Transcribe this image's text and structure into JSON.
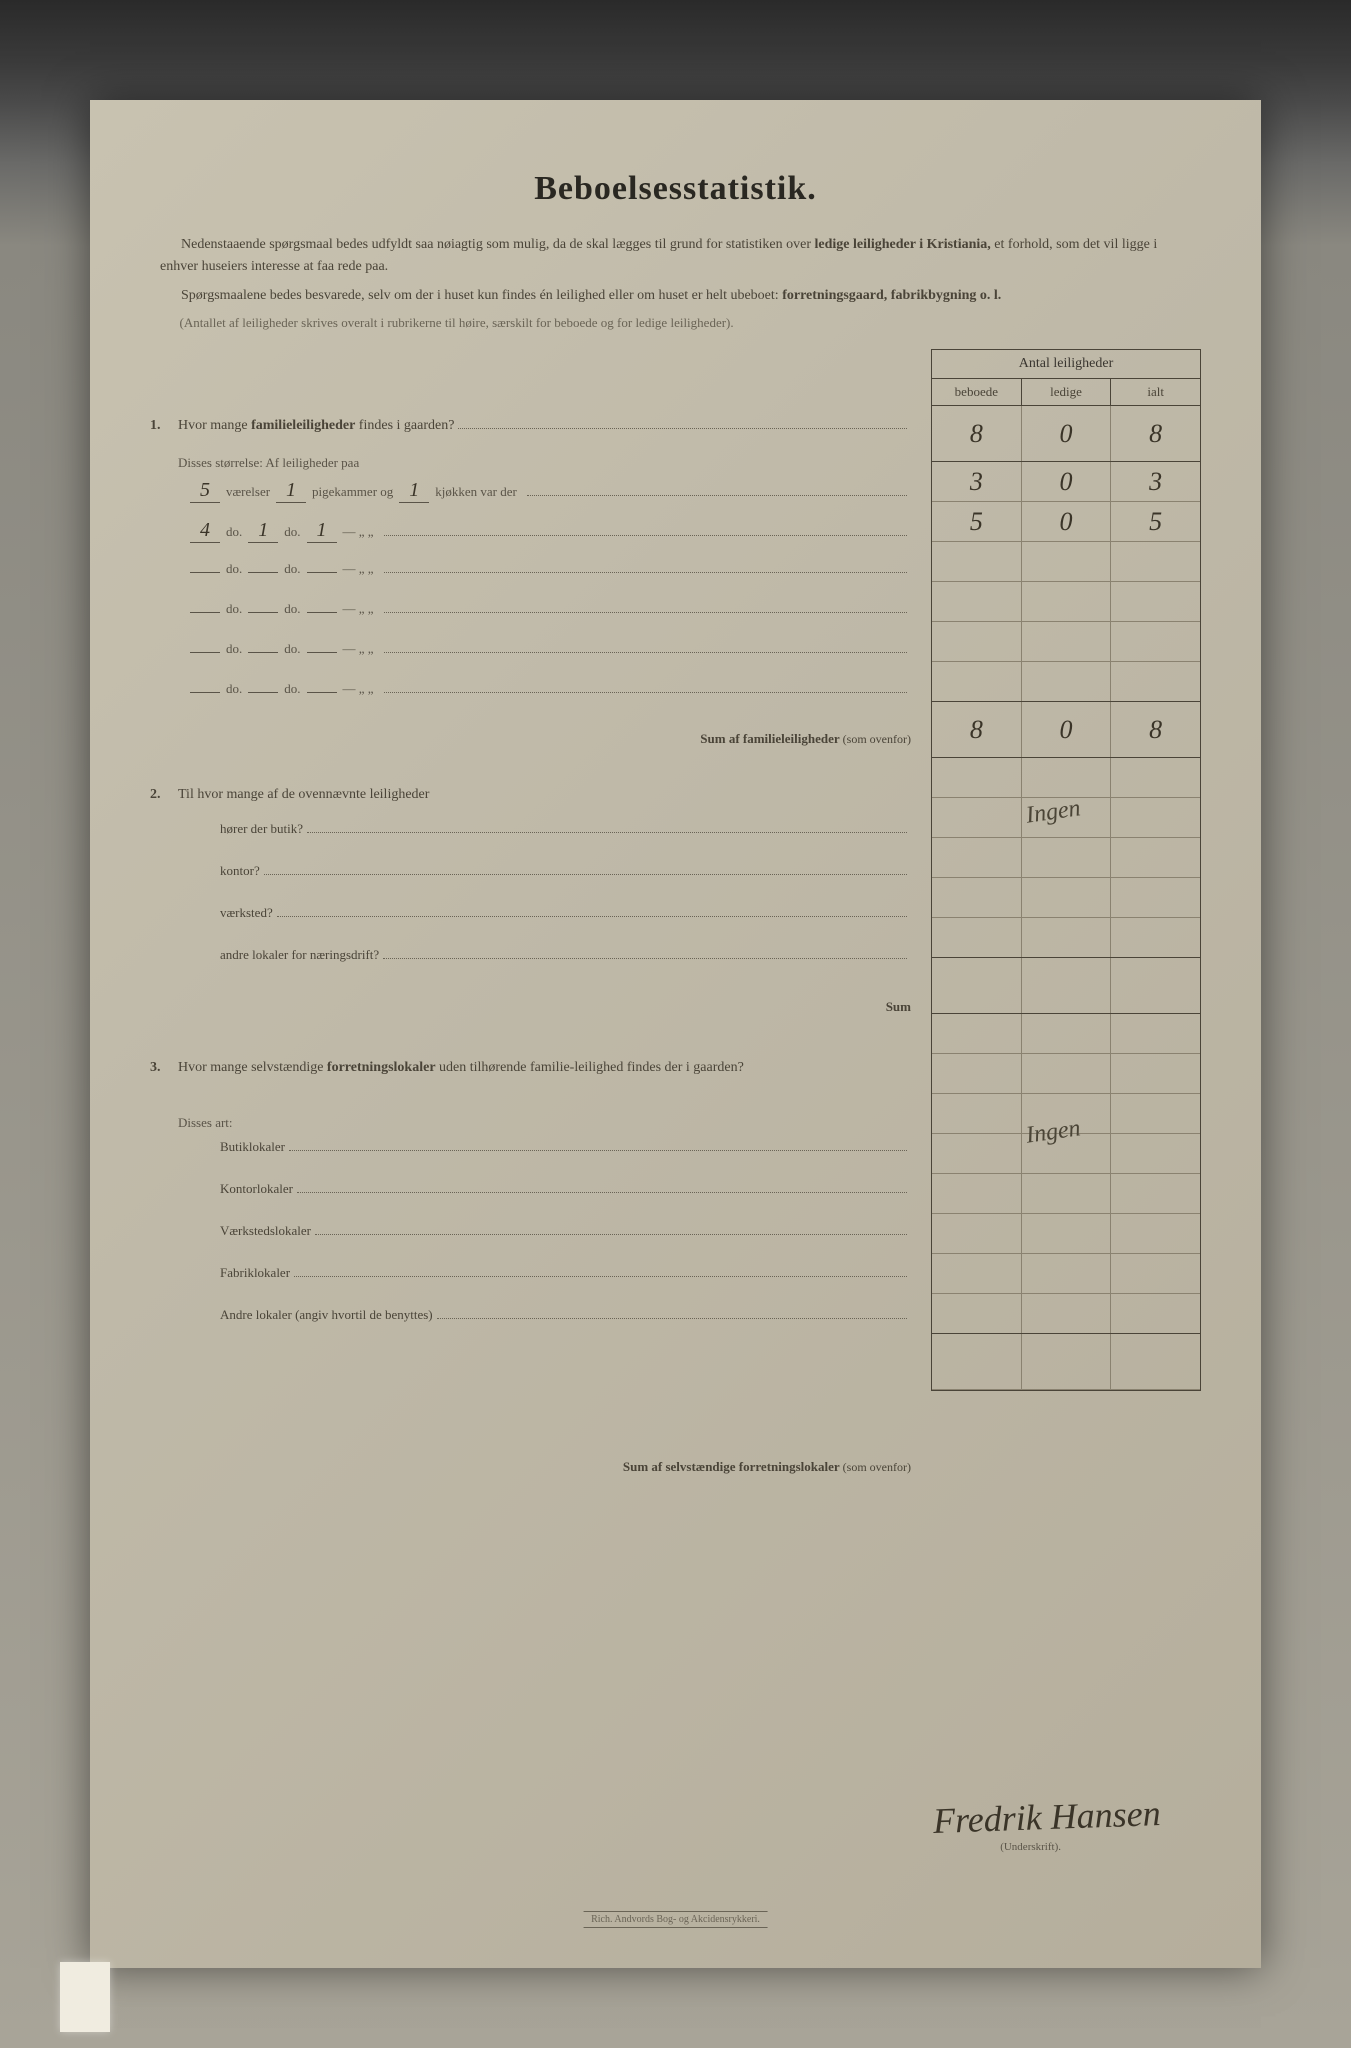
{
  "title": "Beboelsesstatistik.",
  "intro": {
    "p1_a": "Nedenstaaende spørgsmaal bedes udfyldt saa nøiagtig som mulig, da de skal lægges til grund for statistiken over ",
    "p1_b": "ledige leiligheder i Kristiania,",
    "p1_c": " et forhold, som det vil ligge i enhver huseiers interesse at faa rede paa.",
    "p2_a": "Spørgsmaalene bedes besvarede, selv om der i huset kun findes én leilighed eller om huset er helt ubeboet: ",
    "p2_b": "forretningsgaard, fabrikbygning o. l.",
    "note": "(Antallet af leiligheder skrives overalt i rubrikerne til høire, særskilt for beboede og for ledige leiligheder)."
  },
  "table": {
    "header": "Antal leiligheder",
    "cols": {
      "a": "beboede",
      "b": "ledige",
      "c": "ialt"
    },
    "rows": [
      {
        "a": "8",
        "b": "0",
        "c": "8"
      },
      {
        "a": "3",
        "b": "0",
        "c": "3"
      },
      {
        "a": "5",
        "b": "0",
        "c": "5"
      },
      {
        "a": "",
        "b": "",
        "c": ""
      },
      {
        "a": "",
        "b": "",
        "c": ""
      },
      {
        "a": "",
        "b": "",
        "c": ""
      },
      {
        "a": "",
        "b": "",
        "c": ""
      }
    ],
    "sum": {
      "a": "8",
      "b": "0",
      "c": "8"
    }
  },
  "q1": {
    "num": "1.",
    "text_a": "Hvor mange ",
    "text_b": "familieleiligheder",
    "text_c": " findes i gaarden?",
    "sub": "Disses størrelse:   Af leiligheder paa",
    "lines": [
      {
        "v1": "5",
        "l1": "værelser",
        "v2": "1",
        "l2": "pigekammer og",
        "v3": "1",
        "l3": "kjøkken var der"
      },
      {
        "v1": "4",
        "l1": "do.",
        "v2": "1",
        "l2": "do.",
        "v3": "1",
        "l3": "—        „        „"
      },
      {
        "v1": "",
        "l1": "do.",
        "v2": "",
        "l2": "do.",
        "v3": "",
        "l3": "—        „        „"
      },
      {
        "v1": "",
        "l1": "do.",
        "v2": "",
        "l2": "do.",
        "v3": "",
        "l3": "—        „        „"
      },
      {
        "v1": "",
        "l1": "do.",
        "v2": "",
        "l2": "do.",
        "v3": "",
        "l3": "—        „        „"
      },
      {
        "v1": "",
        "l1": "do.",
        "v2": "",
        "l2": "do.",
        "v3": "",
        "l3": "—        „        „"
      }
    ],
    "sum_label": "Sum af familieleiligheder",
    "sum_paren": "(som ovenfor)"
  },
  "q2": {
    "num": "2.",
    "text": "Til hvor mange af de ovennævnte leiligheder",
    "rows": [
      "hører der butik?",
      "kontor?",
      "værksted?",
      "andre lokaler for næringsdrift?"
    ],
    "answer": "Ingen",
    "sum": "Sum"
  },
  "q3": {
    "num": "3.",
    "text_a": "Hvor mange selvstændige ",
    "text_b": "forretningslokaler",
    "text_c": " uden tilhørende familie-leilighed findes der i gaarden?",
    "sub": "Disses art:",
    "rows": [
      "Butiklokaler",
      "Kontorlokaler",
      "Værkstedslokaler",
      "Fabriklokaler",
      "Andre lokaler (angiv hvortil de benyttes)"
    ],
    "answer": "Ingen",
    "sum_label": "Sum af selvstændige forretningslokaler",
    "sum_paren": "(som ovenfor)"
  },
  "signature": "Fredrik Hansen",
  "sig_label": "(Underskrift).",
  "imprint": "Rich. Andvords Bog- og Akcidensrykkeri."
}
